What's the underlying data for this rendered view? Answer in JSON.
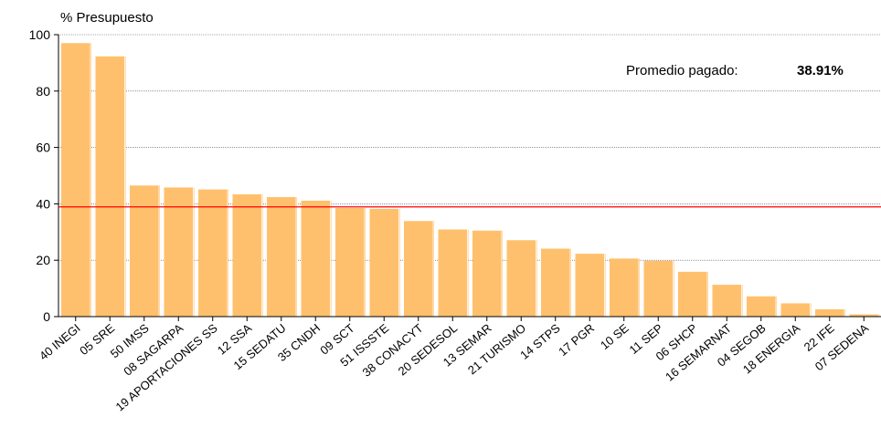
{
  "chart_data": {
    "type": "bar",
    "title": "",
    "ylabel": "% Presupuesto",
    "xlabel": "",
    "ylim": [
      0,
      100
    ],
    "yticks": [
      0,
      20,
      40,
      60,
      80,
      100
    ],
    "grid": true,
    "categories": [
      "40 INEGI",
      "05 SRE",
      "50 IMSS",
      "08 SAGARPA",
      "19 APORTACIONES SS",
      "12 SSA",
      "15 SEDATU",
      "35 CNDH",
      "09 SCT",
      "51 ISSSTE",
      "38 CONACYT",
      "20 SEDESOL",
      "13 SEMAR",
      "21 TURISMO",
      "14 STPS",
      "17 PGR",
      "10 SE",
      "11 SEP",
      "06 SHCP",
      "16 SEMARNAT",
      "04 SEGOB",
      "18 ENERGIA",
      "22 IFE",
      "07 SEDENA"
    ],
    "values": [
      97,
      92.3,
      46.5,
      45.8,
      45.1,
      43.4,
      42.4,
      41.1,
      38.5,
      38.2,
      33.9,
      30.9,
      30.5,
      27.1,
      24.1,
      22.3,
      20.6,
      19.8,
      15.9,
      11.3,
      7.2,
      4.7,
      2.6,
      0.8
    ],
    "bar_color": "#FFC06E",
    "reference_line": {
      "label": "Promedio pagado:",
      "value_text": "38.91%",
      "value": 38.91,
      "color": "#FF0000"
    }
  }
}
